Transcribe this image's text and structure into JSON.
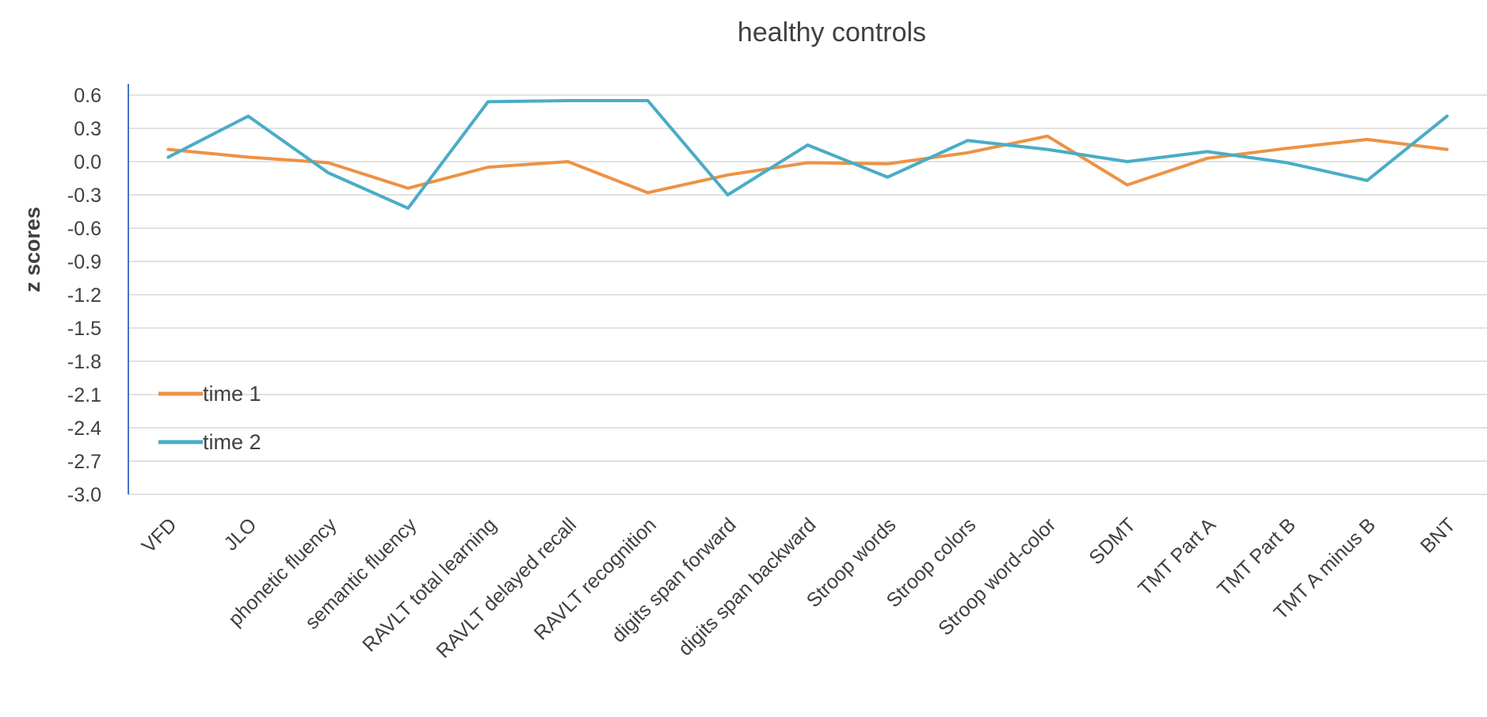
{
  "chart_data": {
    "type": "line",
    "title": "healthy controls",
    "ylabel": "z scores",
    "xlabel": "",
    "ylim": [
      -3.0,
      0.6
    ],
    "yticks": [
      "0.6",
      "0.3",
      "0.0",
      "-0.3",
      "-0.6",
      "-0.9",
      "-1.2",
      "-1.5",
      "-1.8",
      "-2.1",
      "-2.4",
      "-2.7",
      "-3.0"
    ],
    "ytick_values": [
      0.6,
      0.3,
      0.0,
      -0.3,
      -0.6,
      -0.9,
      -1.2,
      -1.5,
      -1.8,
      -2.1,
      -2.4,
      -2.7,
      -3.0
    ],
    "grid": true,
    "legend_position": "left",
    "categories": [
      "VFD",
      "JLO",
      "phonetic fluency",
      "semantic fluency",
      "RAVLT total learning",
      "RAVLT delayed recall",
      "RAVLT recognition",
      "digits span forward",
      "digits span backward",
      "Stroop words",
      "Stroop colors",
      "Stroop word-color",
      "SDMT",
      "TMT Part A",
      "TMT Part B",
      "TMT A minus B",
      "BNT"
    ],
    "series": [
      {
        "name": "time 1",
        "color": "#ed9244",
        "values": [
          0.11,
          0.04,
          -0.01,
          -0.24,
          -0.05,
          0.0,
          -0.28,
          -0.12,
          -0.01,
          -0.02,
          0.08,
          0.23,
          -0.21,
          0.03,
          0.12,
          0.2,
          0.11
        ]
      },
      {
        "name": "time 2",
        "color": "#4aacc6",
        "values": [
          0.04,
          0.41,
          -0.1,
          -0.42,
          0.54,
          0.55,
          0.55,
          -0.3,
          0.15,
          -0.14,
          0.19,
          0.11,
          0.0,
          0.09,
          -0.01,
          -0.17,
          0.41
        ]
      }
    ]
  }
}
